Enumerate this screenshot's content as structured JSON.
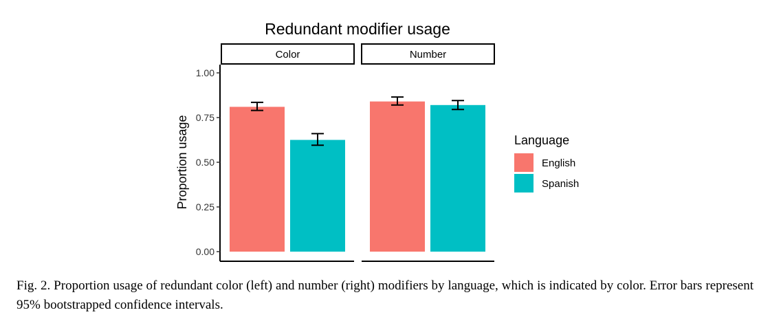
{
  "chart_data": {
    "type": "bar",
    "title": "Redundant modifier usage",
    "ylabel": "Proportion usage",
    "xlabel": "",
    "ylim": [
      0,
      1.1
    ],
    "yticks": [
      "0.00",
      "0.25",
      "0.50",
      "0.75",
      "1.00"
    ],
    "ytick_values": [
      0,
      0.25,
      0.5,
      0.75,
      1.0
    ],
    "grid": false,
    "facets": [
      "Color",
      "Number"
    ],
    "categories": [
      "English",
      "Spanish"
    ],
    "series": [
      {
        "name": "English",
        "color": "#F8766D",
        "values": [
          0.81,
          0.84
        ],
        "ci_low": [
          0.79,
          0.82
        ],
        "ci_high": [
          0.835,
          0.865
        ]
      },
      {
        "name": "Spanish",
        "color": "#00BFC4",
        "values": [
          0.625,
          0.82
        ],
        "ci_low": [
          0.595,
          0.795
        ],
        "ci_high": [
          0.66,
          0.845
        ]
      }
    ],
    "legend": {
      "title": "Language",
      "placement": "right"
    },
    "error_bars": "95% bootstrapped confidence intervals"
  },
  "caption": "Fig. 2. Proportion usage of redundant color (left) and number (right) modifiers by language, which is indicated by color. Error bars represent 95% bootstrapped confidence intervals."
}
